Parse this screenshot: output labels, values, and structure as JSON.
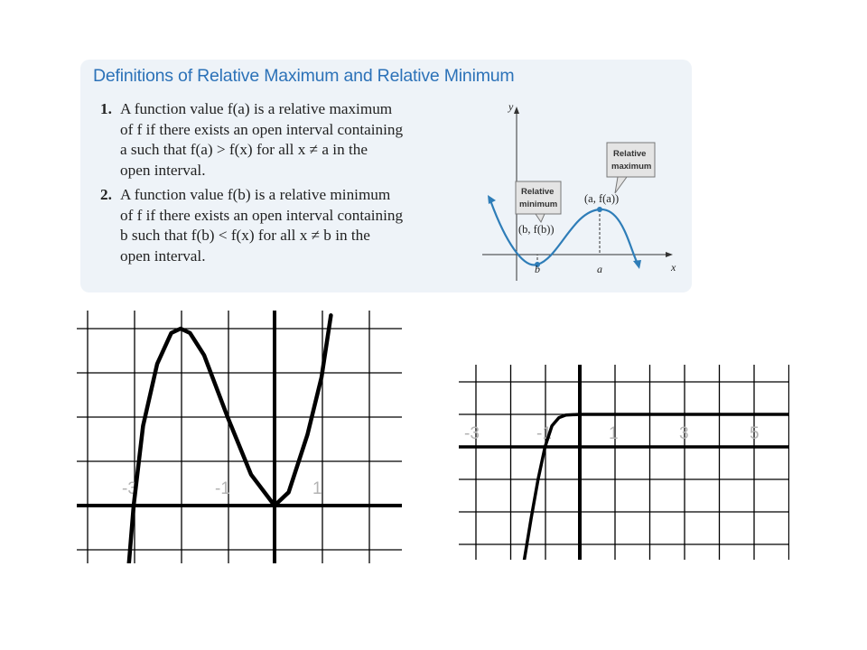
{
  "definition": {
    "title": "Definitions of Relative Maximum and Relative Minimum",
    "items": [
      {
        "number": "1.",
        "lines": [
          "A function value f(a) is a relative maximum",
          "of f if there exists an open interval containing",
          "a such that f(a) > f(x) for all x ≠ a in the",
          "open interval."
        ]
      },
      {
        "number": "2.",
        "lines": [
          "A function value f(b) is a relative minimum",
          "of f if there exists an open interval containing",
          "b such that f(b) < f(x) for all x ≠ b in the",
          "open interval."
        ]
      }
    ],
    "inset": {
      "y_axis_label": "y",
      "x_axis_label": "x",
      "max_callout": [
        "Relative",
        "maximum"
      ],
      "min_callout": [
        "Relative",
        "minimum"
      ],
      "max_point_label": "(a, f(a))",
      "min_point_label": "(b, f(b))",
      "a_label": "a",
      "b_label": "b",
      "colors": {
        "curve": "#2e7db8",
        "callout_bg": "#e4e4e4",
        "callout_border": "#777777"
      }
    }
  },
  "graphs": [
    {
      "name": "cubic-graph",
      "tick_labels": [
        "-3",
        "-1",
        "1"
      ],
      "curve_points": [
        [
          -3.1,
          -1.3
        ],
        [
          -3,
          0
        ],
        [
          -2.8,
          1.8
        ],
        [
          -2.5,
          3.2
        ],
        [
          -2.2,
          3.9
        ],
        [
          -2,
          4
        ],
        [
          -1.8,
          3.9
        ],
        [
          -1.5,
          3.4
        ],
        [
          -1,
          2
        ],
        [
          -0.5,
          0.7
        ],
        [
          0,
          0
        ],
        [
          0.3,
          0.3
        ],
        [
          0.7,
          1.6
        ],
        [
          1,
          2.9
        ],
        [
          1.2,
          4.3
        ]
      ]
    },
    {
      "name": "exponential-graph",
      "tick_labels": [
        "-3",
        "-1",
        "1",
        "3",
        "5"
      ],
      "curve_points": [
        [
          -1.6,
          -3.5
        ],
        [
          -1.4,
          -2.2
        ],
        [
          -1.2,
          -1
        ],
        [
          -1,
          0
        ],
        [
          -0.8,
          0.65
        ],
        [
          -0.6,
          0.9
        ],
        [
          -0.4,
          0.98
        ],
        [
          0,
          1
        ],
        [
          2,
          1
        ],
        [
          4,
          1
        ],
        [
          6,
          1
        ]
      ]
    }
  ]
}
